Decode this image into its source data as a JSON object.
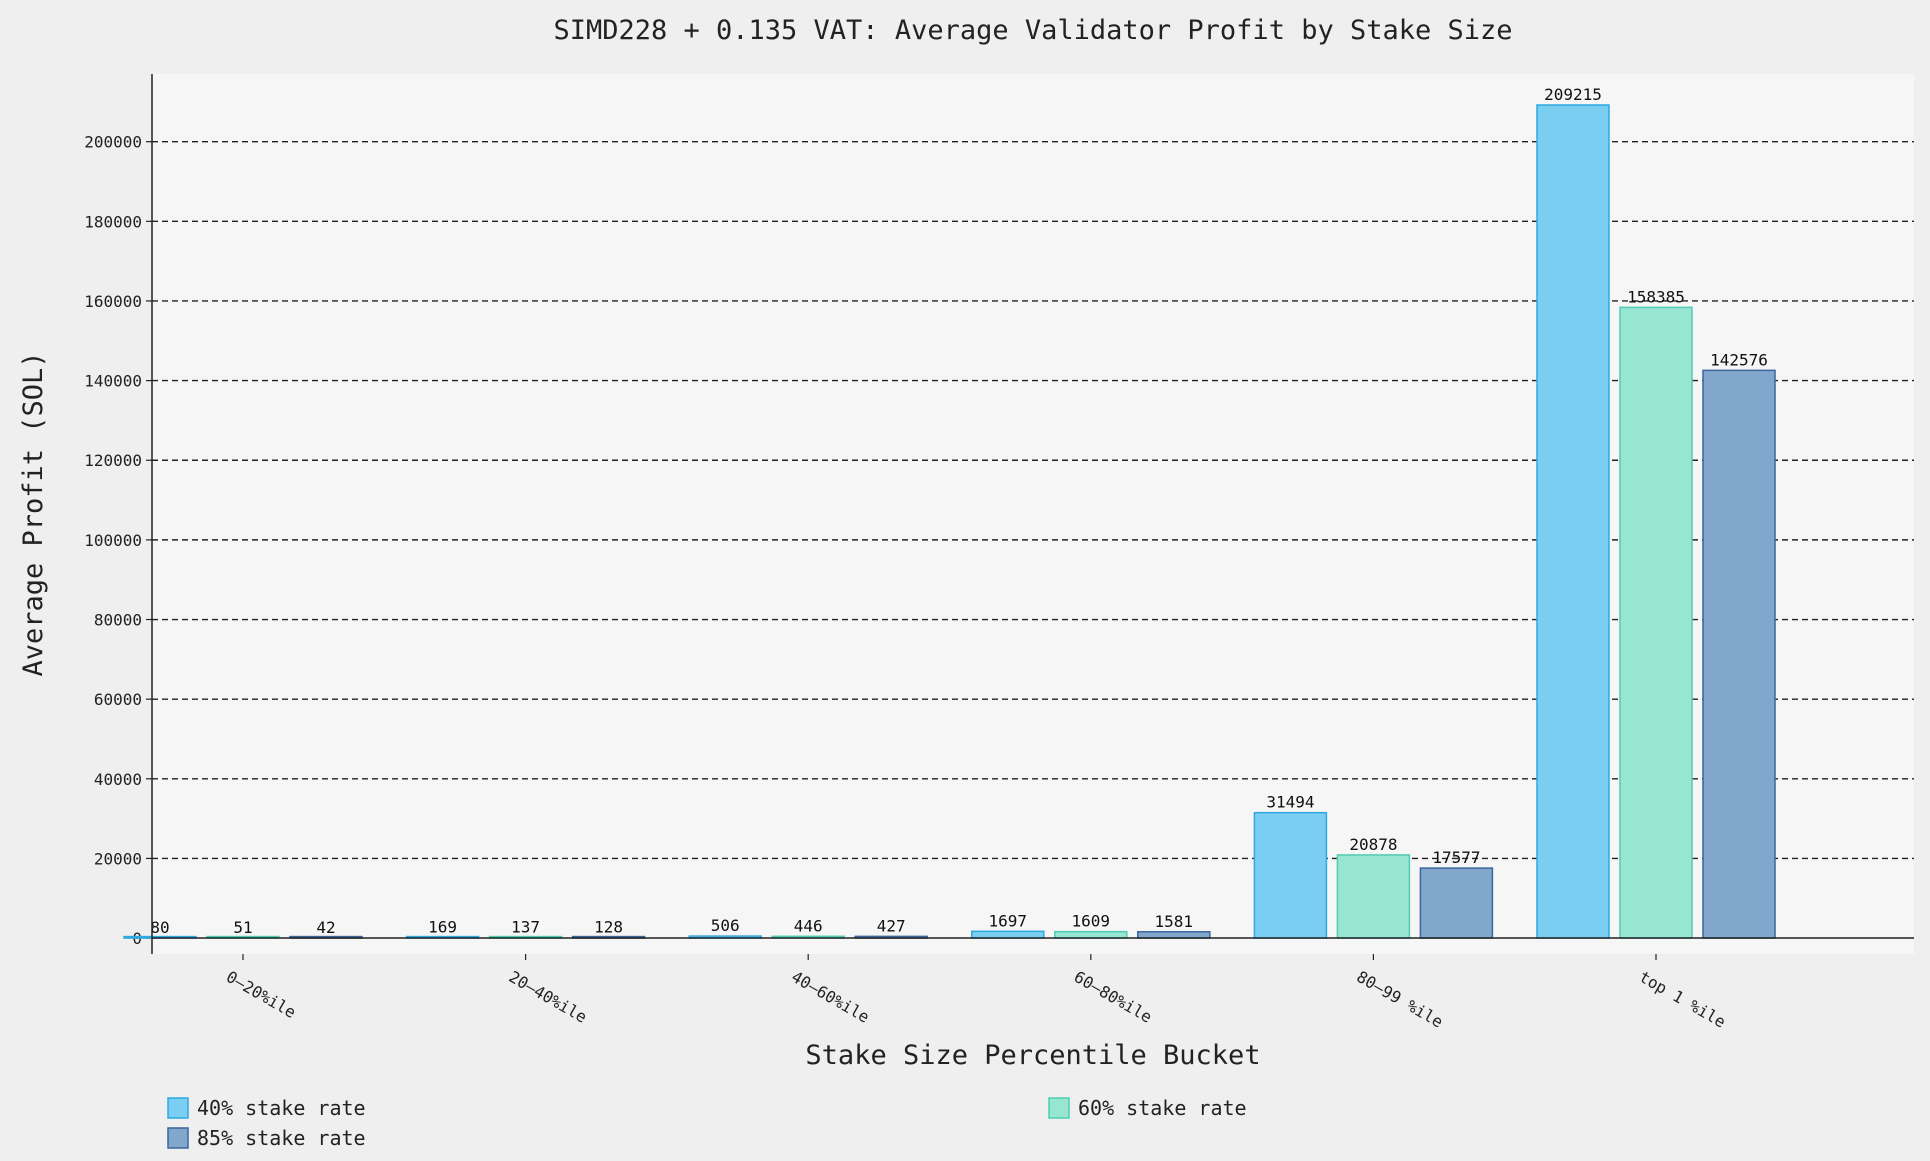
{
  "chart_data": {
    "type": "bar",
    "title": "SIMD228 + 0.135 VAT: Average Validator Profit by Stake Size",
    "xlabel": "Stake Size Percentile Bucket",
    "ylabel": "Average Profit (SOL)",
    "categories": [
      "0–20%ile",
      "20–40%ile",
      "40–60%ile",
      "60–80%ile",
      "80–99 %ile",
      "top 1 %ile"
    ],
    "series": [
      {
        "name": "40% stake rate",
        "values": [
          80,
          169,
          506,
          1697,
          31494,
          209215
        ],
        "color": "#7acef2",
        "edge": "#2fa8e0"
      },
      {
        "name": "60% stake rate",
        "values": [
          51,
          137,
          446,
          1609,
          20878,
          158385
        ],
        "color": "#97e5d3",
        "edge": "#4fcdb2"
      },
      {
        "name": "85% stake rate",
        "values": [
          42,
          128,
          427,
          1581,
          17577,
          142576
        ],
        "color": "#82a7cc",
        "edge": "#3b679d"
      }
    ],
    "yticks": [
      0,
      20000,
      40000,
      60000,
      80000,
      100000,
      120000,
      140000,
      160000,
      180000,
      200000
    ],
    "ylim": [
      -4000,
      217000
    ],
    "grid": true,
    "legend_position": "bottom"
  }
}
